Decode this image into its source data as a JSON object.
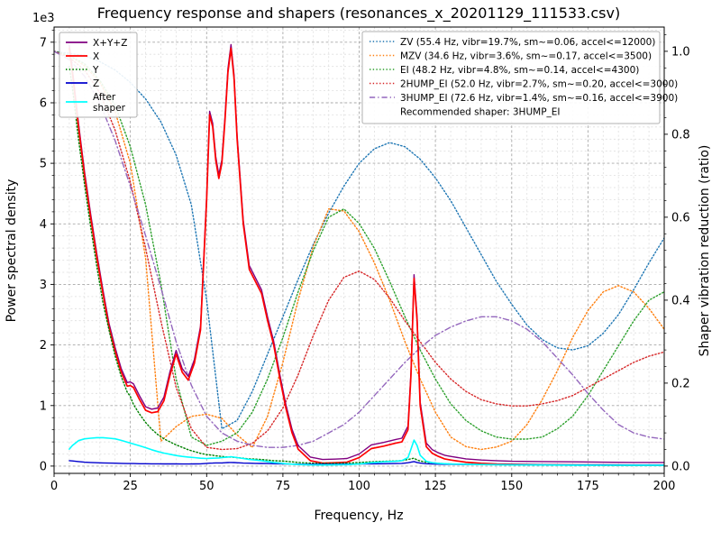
{
  "chart_data": {
    "type": "line",
    "title": "Frequency response and shapers (resonances_x_20201129_111533.csv)",
    "xlabel": "Frequency, Hz",
    "ylabel_left": "Power spectral density",
    "ylabel_right": "Shaper vibration reduction (ratio)",
    "y_left_multiplier_label": "1e3",
    "xlim": [
      0,
      200
    ],
    "ylim_left": [
      0,
      7250
    ],
    "ylim_right": [
      0,
      1.05
    ],
    "x_major_ticks": [
      0,
      25,
      50,
      75,
      100,
      125,
      150,
      175,
      200
    ],
    "x_minor_step": 5,
    "y_left_ticks": [
      0,
      1,
      2,
      3,
      4,
      5,
      6,
      7
    ],
    "y_right_ticks": [
      "0.0",
      "0.2",
      "0.4",
      "0.6",
      "0.8",
      "1.0"
    ],
    "grid": {
      "major": true,
      "minor": true,
      "major_color": "#a8a8a8",
      "minor_color": "#dedede"
    },
    "recommended_shaper": "Recommended shaper: 3HUMP_EI",
    "psd_x": [
      5,
      6,
      8,
      10,
      12,
      14,
      16,
      18,
      20,
      22,
      24,
      25,
      26,
      28,
      30,
      32,
      34,
      36,
      38,
      40,
      42,
      44,
      46,
      48,
      50,
      51,
      52,
      53,
      54,
      55,
      56,
      57,
      58,
      59,
      60,
      62,
      64,
      66,
      68,
      70,
      72,
      74,
      76,
      78,
      80,
      84,
      88,
      92,
      96,
      100,
      104,
      108,
      112,
      114,
      116,
      117,
      118,
      119,
      120,
      122,
      124,
      126,
      128,
      130,
      135,
      140,
      145,
      150,
      160,
      170,
      180,
      190,
      200
    ],
    "psd_series": [
      {
        "name": "x-y-z",
        "label": "X+Y+Z",
        "color": "#800080",
        "style": "solid",
        "values": [
          6950,
          6560,
          5660,
          4860,
          4160,
          3510,
          2910,
          2360,
          1960,
          1610,
          1380,
          1390,
          1360,
          1160,
          980,
          940,
          960,
          1140,
          1560,
          1910,
          1610,
          1480,
          1760,
          2310,
          4460,
          5860,
          5660,
          5110,
          4810,
          5060,
          5760,
          6560,
          6960,
          6460,
          5460,
          4060,
          3310,
          3110,
          2910,
          2460,
          2060,
          1510,
          1010,
          610,
          340,
          150,
          110,
          115,
          125,
          200,
          350,
          390,
          440,
          460,
          660,
          1560,
          3160,
          2460,
          1060,
          380,
          270,
          220,
          180,
          160,
          120,
          100,
          90,
          80,
          75,
          70,
          65,
          60,
          60
        ]
      },
      {
        "name": "x",
        "label": "X",
        "color": "#ff0000",
        "style": "solid",
        "values": [
          6900,
          6500,
          5600,
          4800,
          4100,
          3450,
          2850,
          2300,
          1900,
          1550,
          1320,
          1330,
          1300,
          1100,
          920,
          880,
          900,
          1080,
          1500,
          1850,
          1550,
          1420,
          1700,
          2250,
          4400,
          5800,
          5600,
          5050,
          4750,
          5000,
          5700,
          6500,
          6900,
          6400,
          5400,
          4000,
          3250,
          3050,
          2850,
          2400,
          2000,
          1450,
          950,
          550,
          280,
          90,
          50,
          55,
          65,
          140,
          290,
          330,
          380,
          400,
          600,
          1500,
          3100,
          2400,
          1000,
          320,
          210,
          160,
          120,
          100,
          65,
          45,
          35,
          30,
          25,
          20,
          18,
          15,
          15
        ]
      },
      {
        "name": "y",
        "label": "Y",
        "color": "#008000",
        "style": "dotted",
        "values": [
          6600,
          6250,
          5400,
          4650,
          3950,
          3300,
          2700,
          2250,
          1820,
          1480,
          1220,
          1150,
          1020,
          860,
          720,
          610,
          520,
          450,
          400,
          350,
          310,
          270,
          240,
          210,
          190,
          185,
          180,
          170,
          165,
          160,
          155,
          150,
          150,
          145,
          140,
          130,
          120,
          115,
          110,
          100,
          90,
          85,
          80,
          70,
          60,
          50,
          45,
          45,
          50,
          60,
          70,
          80,
          85,
          90,
          110,
          120,
          130,
          100,
          85,
          65,
          55,
          45,
          40,
          35,
          30,
          28,
          25,
          22,
          20,
          15,
          12,
          10,
          10
        ]
      },
      {
        "name": "z",
        "label": "Z",
        "color": "#0000cd",
        "style": "solid",
        "values": [
          90,
          85,
          75,
          65,
          60,
          55,
          52,
          50,
          48,
          45,
          43,
          42,
          42,
          40,
          40,
          38,
          38,
          37,
          36,
          36,
          35,
          35,
          36,
          38,
          45,
          48,
          50,
          52,
          52,
          53,
          55,
          58,
          60,
          58,
          55,
          50,
          48,
          46,
          44,
          42,
          40,
          38,
          36,
          34,
          32,
          30,
          30,
          30,
          32,
          35,
          38,
          40,
          42,
          45,
          55,
          65,
          75,
          60,
          50,
          40,
          35,
          32,
          30,
          30,
          28,
          26,
          25,
          24,
          22,
          20,
          20,
          18,
          18
        ]
      },
      {
        "name": "after-shaper",
        "label": "After\nshaper",
        "color": "#00ffff",
        "style": "solid",
        "values": [
          280,
          340,
          420,
          450,
          460,
          470,
          470,
          460,
          450,
          425,
          395,
          380,
          365,
          335,
          305,
          270,
          240,
          215,
          195,
          175,
          160,
          150,
          140,
          130,
          125,
          128,
          130,
          132,
          135,
          140,
          145,
          150,
          155,
          148,
          140,
          125,
          110,
          100,
          90,
          75,
          60,
          50,
          40,
          32,
          26,
          20,
          18,
          20,
          24,
          35,
          55,
          70,
          80,
          90,
          140,
          280,
          430,
          340,
          180,
          80,
          55,
          45,
          40,
          35,
          30,
          26,
          23,
          20,
          18,
          15,
          14,
          13,
          12
        ]
      }
    ],
    "shaper_x": [
      0,
      5,
      10,
      15,
      20,
      25,
      30,
      35,
      40,
      45,
      50,
      55,
      60,
      65,
      70,
      75,
      80,
      85,
      90,
      95,
      100,
      105,
      110,
      115,
      120,
      125,
      130,
      135,
      140,
      145,
      150,
      155,
      160,
      165,
      170,
      175,
      180,
      185,
      190,
      195,
      200
    ],
    "shaper_series": [
      {
        "name": "zv",
        "label": "ZV (55.4 Hz, vibr=19.7%, sm~=0.06, accel<=12000)",
        "color": "#1f77b4",
        "style": "dotted",
        "values": [
          1.0,
          0.995,
          0.99,
          0.975,
          0.955,
          0.925,
          0.885,
          0.83,
          0.75,
          0.63,
          0.4,
          0.09,
          0.11,
          0.18,
          0.27,
          0.36,
          0.45,
          0.535,
          0.61,
          0.675,
          0.73,
          0.765,
          0.78,
          0.77,
          0.74,
          0.695,
          0.64,
          0.575,
          0.51,
          0.445,
          0.39,
          0.34,
          0.305,
          0.285,
          0.28,
          0.29,
          0.32,
          0.365,
          0.425,
          0.49,
          0.55
        ]
      },
      {
        "name": "mzv",
        "label": "MZV (34.6 Hz, vibr=3.6%, sm~=0.17, accel<=3500)",
        "color": "#ff7f0e",
        "style": "dotted",
        "values": [
          1.0,
          0.99,
          0.965,
          0.925,
          0.855,
          0.73,
          0.5,
          0.06,
          0.095,
          0.12,
          0.125,
          0.115,
          0.075,
          0.045,
          0.12,
          0.25,
          0.4,
          0.53,
          0.62,
          0.615,
          0.565,
          0.49,
          0.4,
          0.3,
          0.21,
          0.13,
          0.07,
          0.047,
          0.04,
          0.046,
          0.06,
          0.1,
          0.16,
          0.23,
          0.31,
          0.375,
          0.42,
          0.435,
          0.42,
          0.38,
          0.33
        ]
      },
      {
        "name": "ei",
        "label": "EI (48.2 Hz, vibr=4.8%, sm~=0.14, accel<=4300)",
        "color": "#2ca02c",
        "style": "dotted",
        "values": [
          1.0,
          0.99,
          0.97,
          0.93,
          0.87,
          0.77,
          0.63,
          0.44,
          0.21,
          0.07,
          0.05,
          0.06,
          0.08,
          0.13,
          0.21,
          0.31,
          0.42,
          0.52,
          0.6,
          0.62,
          0.585,
          0.525,
          0.445,
          0.36,
          0.28,
          0.21,
          0.15,
          0.11,
          0.085,
          0.07,
          0.065,
          0.065,
          0.07,
          0.09,
          0.12,
          0.17,
          0.23,
          0.29,
          0.35,
          0.4,
          0.42
        ]
      },
      {
        "name": "2hump-ei",
        "label": "2HUMP_EI (52.0 Hz, vibr=2.7%, sm~=0.20, accel<=3000)",
        "color": "#d62728",
        "style": "dotted",
        "values": [
          1.0,
          0.985,
          0.955,
          0.9,
          0.81,
          0.685,
          0.525,
          0.35,
          0.19,
          0.09,
          0.045,
          0.04,
          0.042,
          0.055,
          0.085,
          0.14,
          0.22,
          0.315,
          0.4,
          0.455,
          0.47,
          0.45,
          0.405,
          0.35,
          0.3,
          0.25,
          0.21,
          0.18,
          0.16,
          0.15,
          0.145,
          0.145,
          0.15,
          0.158,
          0.17,
          0.19,
          0.21,
          0.23,
          0.25,
          0.265,
          0.275
        ]
      },
      {
        "name": "3hump-ei",
        "label": "3HUMP_EI (72.6 Hz, vibr=1.4%, sm~=0.16, accel<=3900)",
        "color": "#9467bd",
        "style": "dashdot",
        "values": [
          1.0,
          0.98,
          0.94,
          0.875,
          0.785,
          0.675,
          0.555,
          0.43,
          0.3,
          0.195,
          0.12,
          0.08,
          0.06,
          0.05,
          0.045,
          0.045,
          0.05,
          0.06,
          0.08,
          0.1,
          0.13,
          0.17,
          0.21,
          0.25,
          0.285,
          0.315,
          0.335,
          0.35,
          0.36,
          0.36,
          0.35,
          0.33,
          0.3,
          0.26,
          0.22,
          0.175,
          0.135,
          0.1,
          0.08,
          0.07,
          0.065
        ]
      }
    ]
  }
}
